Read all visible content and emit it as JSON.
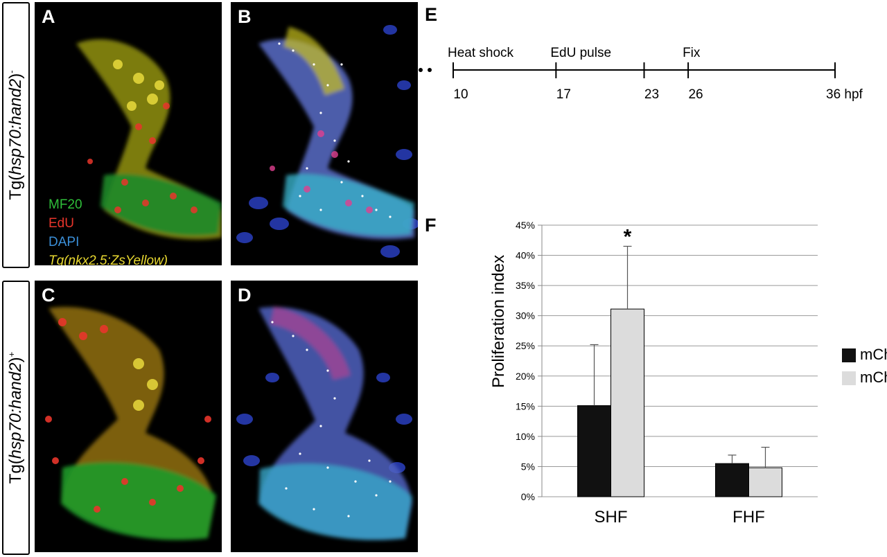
{
  "panels": {
    "a": {
      "label": "A"
    },
    "b": {
      "label": "B"
    },
    "c": {
      "label": "C"
    },
    "d": {
      "label": "D"
    },
    "e": {
      "label": "E"
    },
    "f": {
      "label": "F"
    }
  },
  "row_labels": {
    "top": {
      "prefix": "Tg(",
      "gene": "hsp70:hand2",
      "suffix": ")",
      "sign": "-"
    },
    "bottom": {
      "prefix": "Tg(",
      "gene": "hsp70:hand2",
      "suffix": ")",
      "sign": "+"
    }
  },
  "stain_legend": {
    "mf20": "MF20",
    "edu": "EdU",
    "dapi": "DAPI",
    "zsyellow": "Tg(nkx2.5:ZsYellow)",
    "colors": {
      "mf20": "#2fbf3a",
      "edu": "#e8352b",
      "dapi": "#3b8fd8",
      "zsyellow": "#e8d830"
    }
  },
  "timeline": {
    "events": [
      {
        "label": "Heat shock",
        "at": 10
      },
      {
        "label": "EdU pulse",
        "at": 17
      },
      {
        "label": "Fix",
        "at": 26
      }
    ],
    "ticks": [
      "10",
      "17",
      "23",
      "26"
    ],
    "end_label": "36 hpf",
    "tick_values": [
      10,
      17,
      23,
      26,
      36
    ]
  },
  "chart_data": {
    "type": "bar",
    "ylabel": "Proliferation index",
    "categories": [
      "SHF",
      "FHF"
    ],
    "y_ticks": [
      "0%",
      "5%",
      "10%",
      "15%",
      "20%",
      "25%",
      "30%",
      "35%",
      "40%",
      "45%"
    ],
    "ylim": [
      0,
      45
    ],
    "grid": true,
    "legend_placement": "right",
    "series": [
      {
        "name": "mCherry-",
        "color": "#111111",
        "values": [
          15.1,
          5.5
        ],
        "errors": [
          10.1,
          1.4
        ]
      },
      {
        "name": "mCherry+",
        "color": "#dcdcdc",
        "values": [
          31.1,
          4.8
        ],
        "errors": [
          10.4,
          3.4
        ]
      }
    ],
    "annotations": [
      {
        "category": "SHF",
        "series": "mCherry+",
        "text": "*"
      }
    ]
  }
}
